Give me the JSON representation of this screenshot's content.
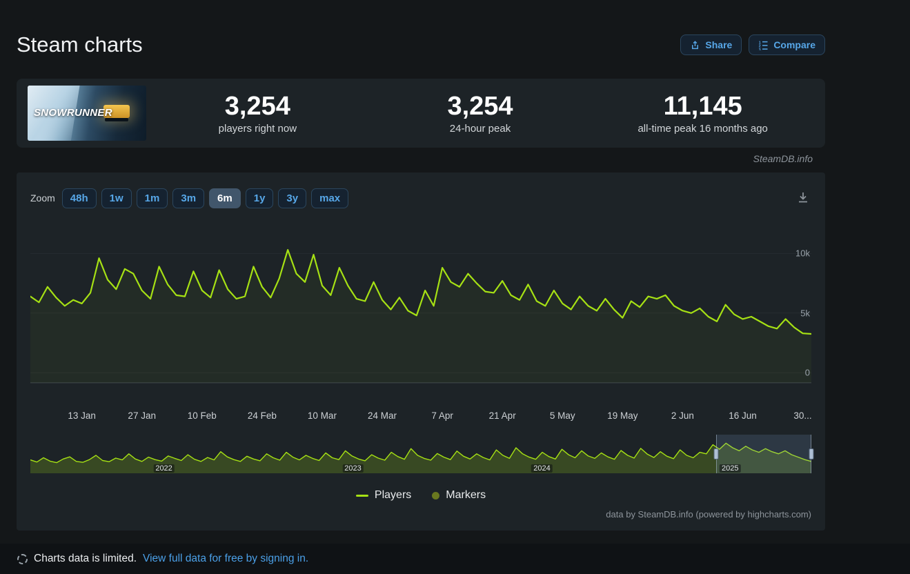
{
  "colors": {
    "body_bg": "#141719",
    "panel_bg": "#1d2327",
    "footer_bg": "#0f1215",
    "accent": "#57a7e8",
    "accent_link": "#4ba0e8",
    "line": "#a6e114",
    "marker": "#69781f",
    "grid": "#262c31",
    "axis": "#404750",
    "text": "#eceef0",
    "muted": "#9aa3ab",
    "btn_bg": "#152230",
    "btn_border": "#2b465e",
    "zoom_selected_bg": "#41566b",
    "nav_mask": "rgba(124,156,204,0.18)",
    "nav_handle": "#aebfd4"
  },
  "header": {
    "title": "Steam charts",
    "share_label": "Share",
    "compare_label": "Compare"
  },
  "game": {
    "name": "SnowRunner",
    "logo_text": "SNOWRUNNER"
  },
  "stats": {
    "items": [
      {
        "key": "players-now",
        "value": "3,254",
        "label": "players right now"
      },
      {
        "key": "24h-peak",
        "value": "3,254",
        "label": "24-hour peak"
      },
      {
        "key": "all-time-peak",
        "value": "11,145",
        "label": "all-time peak 16 months ago"
      }
    ]
  },
  "watermark": "SteamDB.info",
  "toolbar": {
    "zoom_label": "Zoom",
    "options": [
      "48h",
      "1w",
      "1m",
      "3m",
      "6m",
      "1y",
      "3y",
      "max"
    ],
    "selected": "6m"
  },
  "chart_data": {
    "type": "line",
    "series": [
      {
        "name": "Players",
        "color": "#a6e114",
        "start_day": 0,
        "day_step": 2,
        "values": [
          6400,
          5900,
          7200,
          6300,
          5600,
          6100,
          5800,
          6700,
          9600,
          7800,
          7000,
          8700,
          8300,
          6900,
          6200,
          8900,
          7400,
          6500,
          6400,
          8500,
          6900,
          6300,
          8600,
          7000,
          6200,
          6400,
          8900,
          7200,
          6300,
          7900,
          10300,
          8300,
          7600,
          9900,
          7300,
          6500,
          8800,
          7300,
          6200,
          6000,
          7600,
          6100,
          5300,
          6300,
          5200,
          4800,
          6900,
          5600,
          8800,
          7600,
          7200,
          8300,
          7500,
          6800,
          6700,
          7700,
          6500,
          6100,
          7400,
          6000,
          5600,
          6900,
          5800,
          5300,
          6400,
          5600,
          5200,
          6200,
          5300,
          4600,
          6000,
          5500,
          6400,
          6200,
          6500,
          5600,
          5200,
          5000,
          5400,
          4700,
          4300,
          5700,
          4900,
          4500,
          4700,
          4300,
          3900,
          3700,
          4500,
          3800,
          3300,
          3254
        ]
      }
    ],
    "yaxis": {
      "ticks": [
        {
          "label": "0",
          "value": 0
        },
        {
          "label": "5k",
          "value": 5000
        },
        {
          "label": "10k",
          "value": 10000
        }
      ]
    },
    "xaxis": {
      "range_days": [
        0,
        182
      ],
      "ticks": [
        {
          "label": "13 Jan",
          "day": 12
        },
        {
          "label": "27 Jan",
          "day": 26
        },
        {
          "label": "10 Feb",
          "day": 40
        },
        {
          "label": "24 Feb",
          "day": 54
        },
        {
          "label": "10 Mar",
          "day": 68
        },
        {
          "label": "24 Mar",
          "day": 82
        },
        {
          "label": "7 Apr",
          "day": 96
        },
        {
          "label": "21 Apr",
          "day": 110
        },
        {
          "label": "5 May",
          "day": 124
        },
        {
          "label": "19 May",
          "day": 138
        },
        {
          "label": "2 Jun",
          "day": 152
        },
        {
          "label": "16 Jun",
          "day": 166
        },
        {
          "label": "30...",
          "day": 180
        }
      ]
    },
    "legend": [
      {
        "label": "Players",
        "swatch": "line"
      },
      {
        "label": "Markers",
        "swatch": "circle"
      }
    ],
    "navigator": {
      "selection": [
        0.878,
        1.0
      ],
      "years": [
        {
          "label": "2022",
          "pos": 0.171
        },
        {
          "label": "2023",
          "pos": 0.413
        },
        {
          "label": "2024",
          "pos": 0.655
        },
        {
          "label": "2025",
          "pos": 0.896
        }
      ],
      "values": [
        0.35,
        0.28,
        0.42,
        0.31,
        0.26,
        0.38,
        0.45,
        0.3,
        0.27,
        0.36,
        0.5,
        0.33,
        0.29,
        0.41,
        0.35,
        0.55,
        0.38,
        0.3,
        0.44,
        0.36,
        0.31,
        0.48,
        0.4,
        0.33,
        0.52,
        0.37,
        0.3,
        0.43,
        0.35,
        0.62,
        0.45,
        0.36,
        0.3,
        0.47,
        0.38,
        0.32,
        0.55,
        0.42,
        0.34,
        0.6,
        0.44,
        0.35,
        0.5,
        0.4,
        0.33,
        0.58,
        0.42,
        0.36,
        0.65,
        0.48,
        0.38,
        0.32,
        0.52,
        0.41,
        0.34,
        0.6,
        0.46,
        0.37,
        0.72,
        0.5,
        0.4,
        0.34,
        0.56,
        0.44,
        0.36,
        0.64,
        0.47,
        0.38,
        0.55,
        0.43,
        0.35,
        0.68,
        0.5,
        0.4,
        0.75,
        0.55,
        0.44,
        0.37,
        0.6,
        0.46,
        0.38,
        0.7,
        0.52,
        0.42,
        0.65,
        0.48,
        0.4,
        0.58,
        0.45,
        0.37,
        0.66,
        0.5,
        0.41,
        0.73,
        0.54,
        0.43,
        0.62,
        0.47,
        0.39,
        0.68,
        0.5,
        0.42,
        0.6,
        0.55,
        0.85,
        0.7,
        0.9,
        0.75,
        0.65,
        0.8,
        0.68,
        0.6,
        0.72,
        0.62,
        0.55,
        0.65,
        0.52,
        0.44,
        0.36,
        0.3
      ]
    }
  },
  "credits": "data by SteamDB.info (powered by highcharts.com)",
  "footer": {
    "notice": "Charts data is limited.",
    "link_label": "View full data for free by signing in."
  }
}
